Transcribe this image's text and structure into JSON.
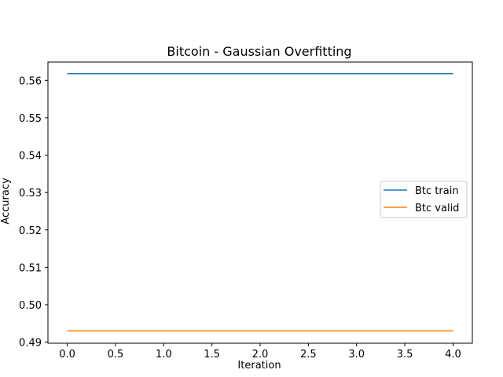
{
  "chart_data": {
    "type": "line",
    "title": "Bitcoin - Gaussian Overfitting",
    "xlabel": "Iteration",
    "ylabel": "Accuracy",
    "xlim": [
      -0.2,
      4.2
    ],
    "ylim": [
      0.4897,
      0.5649
    ],
    "xticks": [
      0.0,
      0.5,
      1.0,
      1.5,
      2.0,
      2.5,
      3.0,
      3.5,
      4.0
    ],
    "xtick_labels": [
      "0.0",
      "0.5",
      "1.0",
      "1.5",
      "2.0",
      "2.5",
      "3.0",
      "3.5",
      "4.0"
    ],
    "yticks": [
      0.49,
      0.5,
      0.51,
      0.52,
      0.53,
      0.54,
      0.55,
      0.56
    ],
    "ytick_labels": [
      "0.49",
      "0.50",
      "0.51",
      "0.52",
      "0.53",
      "0.54",
      "0.55",
      "0.56"
    ],
    "x": [
      0,
      1,
      2,
      3,
      4
    ],
    "series": [
      {
        "name": "Btc train",
        "color": "#1f77b4",
        "values": [
          0.5618,
          0.5618,
          0.5618,
          0.5618,
          0.5618
        ]
      },
      {
        "name": "Btc valid",
        "color": "#ff7f0e",
        "values": [
          0.493,
          0.493,
          0.493,
          0.493,
          0.493
        ]
      }
    ],
    "grid": false,
    "legend": "center-right"
  }
}
